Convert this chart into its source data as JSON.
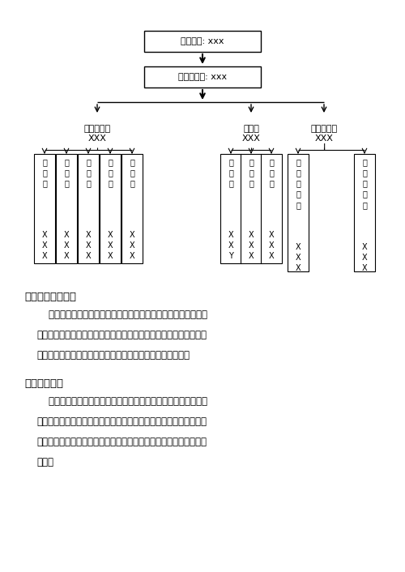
{
  "bg_color": "#ffffff",
  "top_box_text": "项目经理: xxx",
  "mid_box_text": "技术负责人: xxx",
  "l2_left_text": "现场负责人\nXXX",
  "l2_mid_text": "试验室\nXXX",
  "l2_right_text": "施工配置组\nXXX\nI",
  "l3_left_labels": [
    "运\n输\n组",
    "摊\n铺\n组",
    "质\n安\n组",
    "测\n量\n组",
    "碾\n压\n组"
  ],
  "l3_left_names": [
    "X\nX\nX",
    "X\nX\nX",
    "X\nX\nX",
    "X\nX\nX",
    "X\nX\nX"
  ],
  "l3_mid_labels": [
    "试\n验\n组",
    "材\n料\n员",
    "拌\n和\n组"
  ],
  "l3_mid_names": [
    "X\nX\nY",
    "X\nX\nX",
    "X\nX\nX"
  ],
  "l3_right_labels": [
    "设\n备\n转\n运\n组",
    "设\n备\n维\n修\n组"
  ],
  "l3_right_names": [
    "X\nX\nX",
    "X\nX\nX"
  ],
  "sec3_title": "三、机械设备准备",
  "sec3_body": "    大中型施工机械设备的准备，如摊铺机、压路机、运输车辆、装\n载机、发电机等，需根据本工程总体施工部署拟定施工机械进出场计\n划，按计划要求安排精良的机械设备进场，进行保养和调试。",
  "sec4_title": "四、物资准备",
  "sec4_body": "    本工程工期要求非常高，工程的物资准备工作要符合施工进度的\n要求，做到及时充足。工程所用沥青、骨料本公司将要求沥青厂提前\n备货并严格进行检测，所有进场物资预先设定场地分类别堆放并做好\n标识。"
}
